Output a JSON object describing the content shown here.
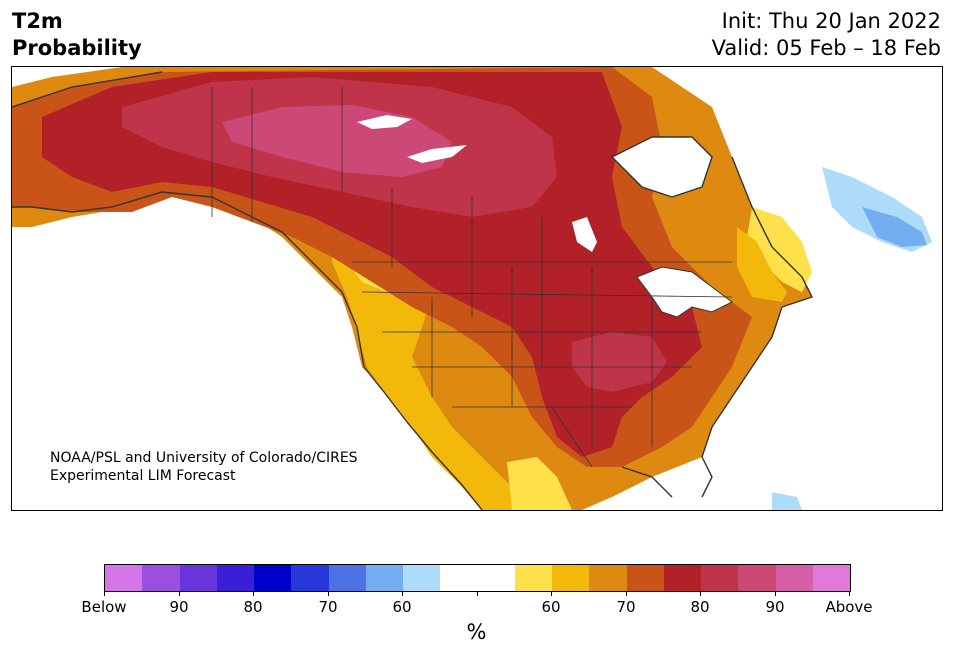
{
  "header": {
    "title_line1": "T2m",
    "title_line2": "Probability",
    "init": "Init: Thu 20 Jan 2022",
    "valid": "Valid: 05 Feb – 18 Feb"
  },
  "map": {
    "credit_line1": "NOAA/PSL and University of Colorado/CIRES",
    "credit_line2": "Experimental LIM Forecast"
  },
  "colorbar": {
    "colors": [
      "#d575ea",
      "#9a4fe0",
      "#6a35d8",
      "#3a1fd6",
      "#0000cc",
      "#2838d8",
      "#4d72e4",
      "#74aef0",
      "#addcfa",
      "#ffffff",
      "#ffffff",
      "#fee04a",
      "#f2b90a",
      "#de8a10",
      "#c85418",
      "#b22128",
      "#bf3448",
      "#cc4877",
      "#d65ea9",
      "#e07ad8"
    ],
    "labels": [
      "Below",
      "90",
      "80",
      "70",
      "60",
      "60",
      "70",
      "80",
      "90",
      "Above"
    ],
    "unit": "%"
  }
}
